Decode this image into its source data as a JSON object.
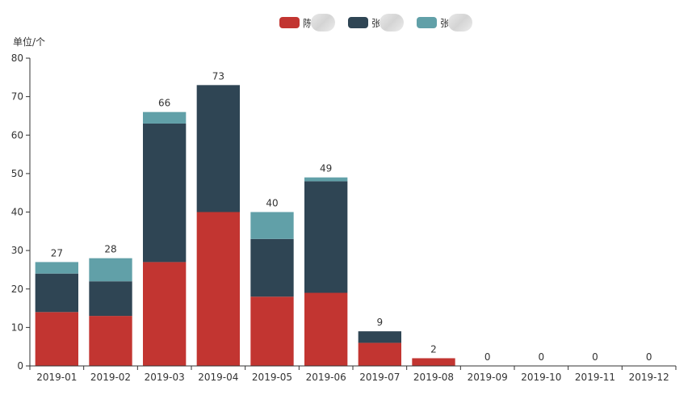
{
  "colors": {
    "series_0": "#c23531",
    "series_1": "#2f4554",
    "series_2": "#61a0a8",
    "title_link": "#3a8ee6",
    "title_text": "#666666"
  },
  "chart_data": {
    "type": "bar",
    "stacked": true,
    "title": "",
    "ylabel": "单位/个",
    "ylim": [
      0,
      80
    ],
    "yticks": [
      0,
      10,
      20,
      30,
      40,
      50,
      60,
      70,
      80
    ],
    "categories": [
      "2019-01",
      "2019-02",
      "2019-03",
      "2019-04",
      "2019-05",
      "2019-06",
      "2019-07",
      "2019-08",
      "2019-09",
      "2019-10",
      "2019-11",
      "2019-12"
    ],
    "series": [
      {
        "name": "陈",
        "values": [
          14,
          13,
          27,
          40,
          18,
          19,
          6,
          2,
          0,
          0,
          0,
          0
        ]
      },
      {
        "name": "张",
        "values": [
          10,
          9,
          36,
          33,
          15,
          29,
          3,
          0,
          0,
          0,
          0,
          0
        ]
      },
      {
        "name": "张",
        "values": [
          3,
          6,
          3,
          0,
          7,
          1,
          0,
          0,
          0,
          0,
          0,
          0
        ]
      }
    ],
    "totals": [
      27,
      28,
      66,
      73,
      40,
      49,
      9,
      2,
      0,
      0,
      0,
      0
    ],
    "legend_position": "top-center",
    "grid": false
  }
}
